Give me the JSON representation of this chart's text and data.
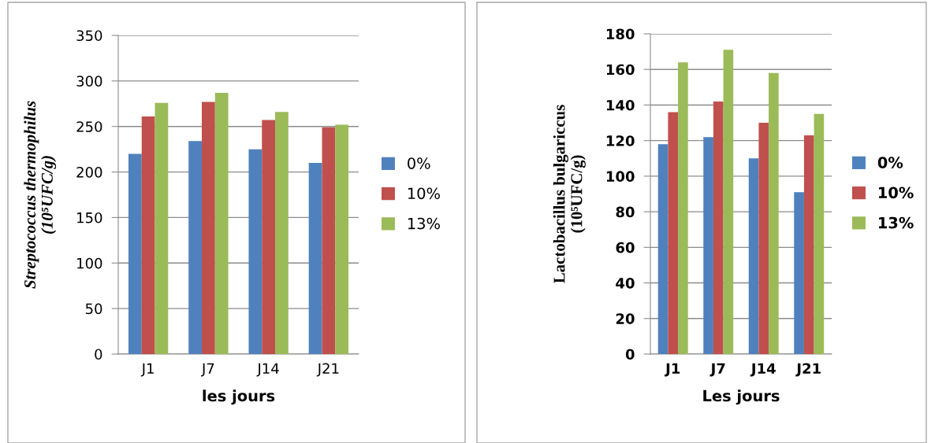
{
  "chart_data": [
    {
      "type": "bar",
      "categories": [
        "J1",
        "J7",
        "J14",
        "J21"
      ],
      "xlabel": "les jours",
      "ylabel": "Streptococcus thermophilus\n(10⁵UFC/g)",
      "ylim": [
        0,
        350
      ],
      "yticks": [
        0,
        50,
        100,
        150,
        200,
        250,
        300,
        350
      ],
      "grid": "y",
      "legend": "right",
      "series": [
        {
          "name": "0%",
          "color": "#4f81bd",
          "values": [
            220,
            234,
            225,
            210
          ]
        },
        {
          "name": "10%",
          "color": "#c0504d",
          "values": [
            261,
            277,
            257,
            249
          ]
        },
        {
          "name": "13%",
          "color": "#9bbb59",
          "values": [
            276,
            287,
            266,
            252
          ]
        }
      ]
    },
    {
      "type": "bar",
      "categories": [
        "J1",
        "J7",
        "J14",
        "J21"
      ],
      "xlabel": "Les jours",
      "ylabel": "Lactobacillus bulgariccus\n(10⁵UFC/g)",
      "ylim": [
        0,
        180
      ],
      "yticks": [
        0,
        20,
        40,
        60,
        80,
        100,
        120,
        140,
        160,
        180
      ],
      "grid": "y",
      "legend": "right",
      "series": [
        {
          "name": "0%",
          "color": "#4f81bd",
          "values": [
            118,
            122,
            110,
            91
          ]
        },
        {
          "name": "10%",
          "color": "#c0504d",
          "values": [
            136,
            142,
            130,
            123
          ]
        },
        {
          "name": "13%",
          "color": "#9bbb59",
          "values": [
            164,
            171,
            158,
            135
          ]
        }
      ]
    }
  ]
}
